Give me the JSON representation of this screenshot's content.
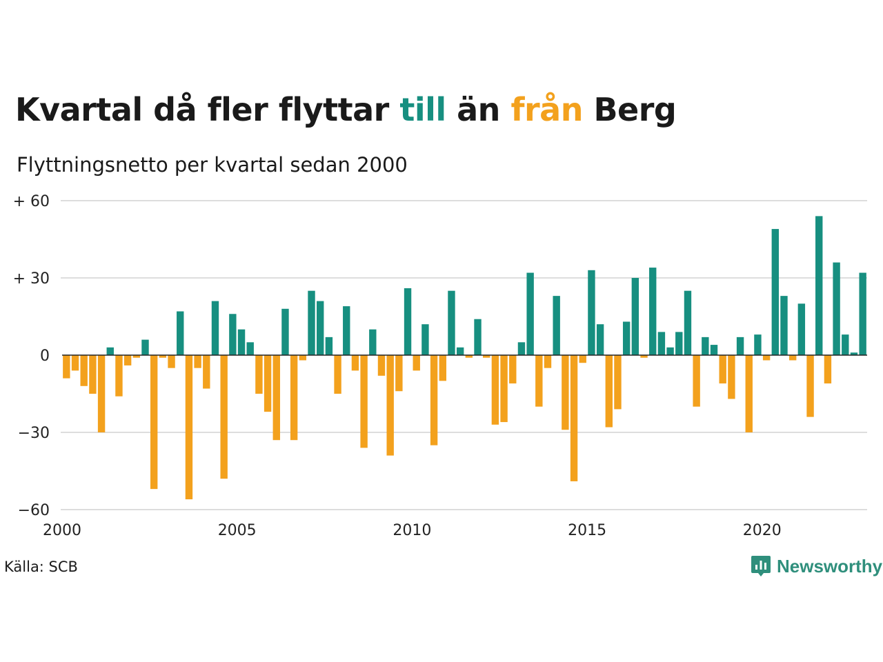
{
  "header": {
    "title_part1": "Kvartal då fler flyttar ",
    "title_to": "till",
    "title_part2": " än ",
    "title_from": "från",
    "title_part3": " Berg",
    "subtitle": "Flyttningsnetto per kvartal sedan 2000"
  },
  "footer": {
    "source": "Källa: SCB",
    "brand": "Newsworthy"
  },
  "colors": {
    "positive": "#178f80",
    "negative": "#f3a11d",
    "grid": "#dddddd",
    "axis": "#222222"
  },
  "chart_data": {
    "type": "bar",
    "title": "Kvartal då fler flyttar till än från Berg",
    "subtitle": "Flyttningsnetto per kvartal sedan 2000",
    "ylim": [
      -60,
      60
    ],
    "yticks": [
      60,
      30,
      0,
      -30,
      -60
    ],
    "ytick_labels": [
      "+ 60",
      "+ 30",
      "0",
      "−30",
      "−60"
    ],
    "xticks": [
      2000,
      2005,
      2010,
      2015,
      2020
    ],
    "xtick_labels": [
      "2000",
      "2005",
      "2010",
      "2015",
      "2020"
    ],
    "start_year": 2000,
    "grid": true,
    "values": [
      -9,
      -6,
      -12,
      -15,
      -30,
      3,
      -16,
      -4,
      -1,
      6,
      -52,
      -1,
      -5,
      17,
      -56,
      -5,
      -13,
      21,
      -48,
      16,
      10,
      5,
      -15,
      -22,
      -33,
      18,
      -33,
      -2,
      25,
      21,
      7,
      -15,
      19,
      -6,
      -36,
      10,
      -8,
      -39,
      -14,
      26,
      -6,
      12,
      -35,
      -10,
      25,
      3,
      -1,
      14,
      -1,
      -27,
      -26,
      -11,
      5,
      32,
      -20,
      -5,
      23,
      -29,
      -49,
      -3,
      33,
      12,
      -28,
      -21,
      13,
      30,
      -1,
      34,
      9,
      3,
      9,
      25,
      -20,
      7,
      4,
      -11,
      -17,
      7,
      -30,
      8,
      -2,
      49,
      23,
      -2,
      20,
      -24,
      54,
      -11,
      36,
      8,
      1,
      32
    ]
  }
}
